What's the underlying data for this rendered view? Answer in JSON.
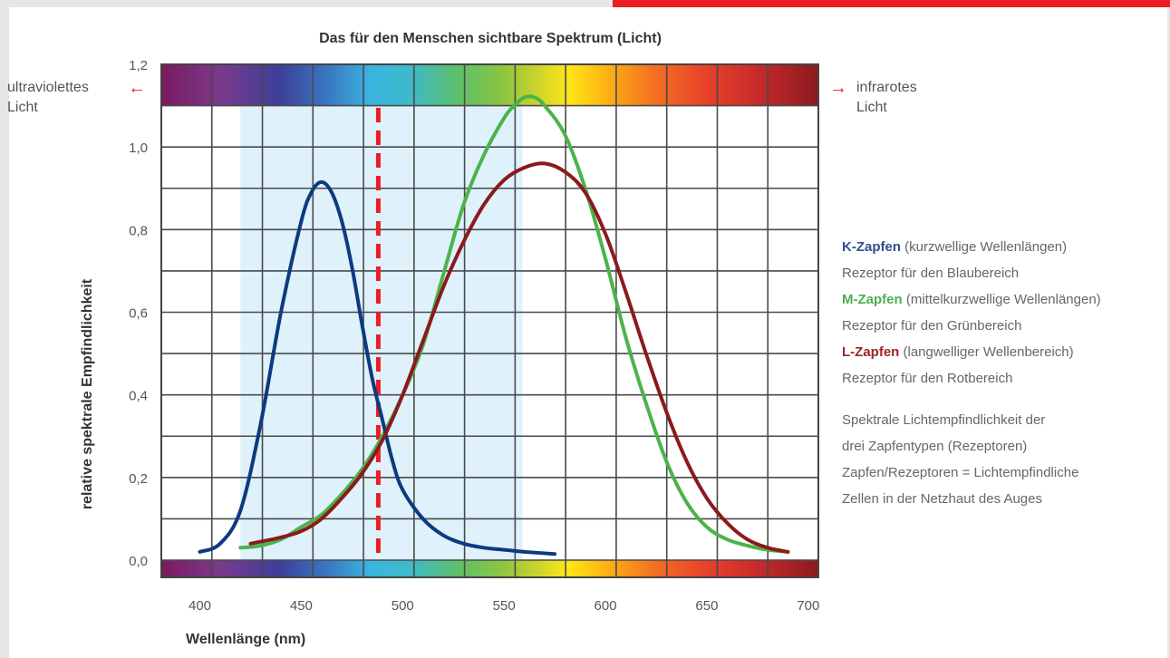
{
  "colors": {
    "k_cone": "#0d3a80",
    "m_cone": "#4cb34a",
    "l_cone": "#8b1a1f",
    "marker": "#ee1c24",
    "highlight": "#dff1fa",
    "grid": "#4a4a4a",
    "accent": "#ee1c24"
  },
  "icons": {
    "uv_arrow": "arrow-left-icon",
    "ir_arrow": "arrow-right-icon"
  },
  "uv": {
    "arrow": "←",
    "line1": "ultraviolettes",
    "line2": "Licht"
  },
  "ir": {
    "arrow": "→",
    "line1": "infrarotes",
    "line2": "Licht"
  },
  "legend": {
    "k_name": "K-Zapfen",
    "k_desc": " (kurzwellige Wellenlängen)",
    "k_role": "Rezeptor für den Blaubereich",
    "m_name": "M-Zapfen",
    "m_desc": " (mittelkurzwellige Wellenlängen)",
    "m_role": "Rezeptor für den Grünbereich",
    "l_name": "L-Zapfen",
    "l_desc": " (langwelliger Wellenbereich)",
    "l_role": "Rezeptor für den Rotbereich"
  },
  "note": {
    "line1": "Spektrale Lichtempfindlichkeit der",
    "line2": "drei Zapfentypen (Rezeptoren)",
    "line3": "Zapfen/Rezeptoren = Lichtempfindliche",
    "line4": "Zellen in der Netzhaut des Auges"
  },
  "chart_data": {
    "type": "line",
    "title": "Das für den Menschen sichtbare Spektrum (Licht)",
    "xlabel": "Wellenlänge (nm)",
    "ylabel": "relative spektrale Empfindlichkeit",
    "xlim": [
      381,
      705
    ],
    "ylim": [
      0.0,
      1.2
    ],
    "x_ticks": [
      400,
      450,
      500,
      550,
      600,
      650,
      700
    ],
    "x_tick_labels": [
      "400",
      "450",
      "500",
      "550",
      "600",
      "650",
      "700"
    ],
    "y_ticks": [
      0.0,
      0.2,
      0.4,
      0.6,
      0.8,
      1.0,
      1.2
    ],
    "y_tick_labels": [
      "0,0",
      "0,2",
      "0,4",
      "0,6",
      "0,8",
      "1,0",
      "1,2"
    ],
    "grid": true,
    "spectrum_bands": true,
    "highlight_range": [
      420,
      559
    ],
    "marker_x": 488,
    "series": [
      {
        "name": "K-Zapfen",
        "x": [
          400,
          410,
          420,
          430,
          440,
          450,
          455,
          460,
          465,
          470,
          475,
          480,
          485,
          490,
          495,
          500,
          510,
          520,
          530,
          540,
          550,
          560,
          575
        ],
        "y": [
          0.02,
          0.04,
          0.12,
          0.33,
          0.6,
          0.82,
          0.89,
          0.915,
          0.89,
          0.82,
          0.71,
          0.57,
          0.44,
          0.34,
          0.24,
          0.17,
          0.1,
          0.06,
          0.04,
          0.03,
          0.025,
          0.02,
          0.015
        ]
      },
      {
        "name": "M-Zapfen",
        "x": [
          420,
          430,
          440,
          450,
          460,
          470,
          480,
          490,
          500,
          510,
          520,
          530,
          540,
          550,
          555,
          560,
          565,
          570,
          580,
          590,
          600,
          610,
          620,
          630,
          640,
          650,
          660,
          670,
          680,
          690
        ],
        "y": [
          0.03,
          0.035,
          0.05,
          0.08,
          0.11,
          0.16,
          0.22,
          0.3,
          0.4,
          0.52,
          0.69,
          0.86,
          0.98,
          1.07,
          1.1,
          1.12,
          1.12,
          1.1,
          1.03,
          0.9,
          0.73,
          0.54,
          0.38,
          0.24,
          0.14,
          0.08,
          0.05,
          0.035,
          0.025,
          0.02
        ]
      },
      {
        "name": "L-Zapfen",
        "x": [
          425,
          440,
          450,
          460,
          470,
          480,
          490,
          500,
          510,
          520,
          530,
          540,
          550,
          560,
          570,
          580,
          590,
          600,
          610,
          620,
          630,
          640,
          650,
          660,
          670,
          680,
          690
        ],
        "y": [
          0.04,
          0.055,
          0.07,
          0.1,
          0.15,
          0.21,
          0.29,
          0.4,
          0.53,
          0.66,
          0.77,
          0.86,
          0.92,
          0.95,
          0.96,
          0.94,
          0.89,
          0.79,
          0.65,
          0.5,
          0.36,
          0.24,
          0.15,
          0.09,
          0.05,
          0.03,
          0.02
        ]
      }
    ]
  }
}
